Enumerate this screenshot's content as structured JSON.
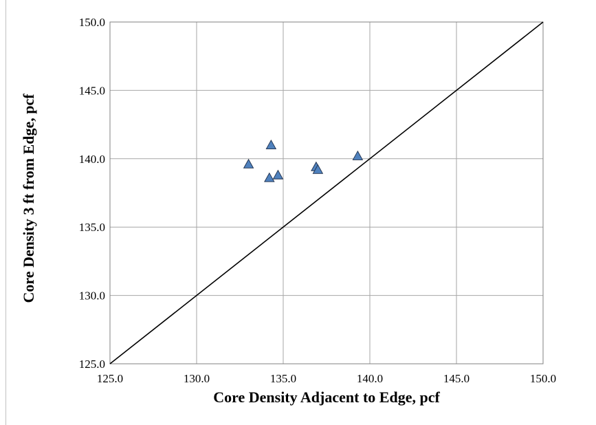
{
  "header_fragment": "",
  "chart_data": {
    "type": "scatter",
    "xlabel": "Core Density Adjacent to Edge, pcf",
    "ylabel": "Core Density 3 ft from Edge, pcf",
    "xlim": [
      125.0,
      150.0
    ],
    "ylim": [
      125.0,
      150.0
    ],
    "x_ticks": [
      "125.0",
      "130.0",
      "135.0",
      "140.0",
      "145.0",
      "150.0"
    ],
    "y_ticks": [
      "125.0",
      "130.0",
      "135.0",
      "140.0",
      "145.0",
      "150.0"
    ],
    "grid": true,
    "marker": "triangle",
    "marker_color": "#4f81bd",
    "line_of_equality": {
      "from": [
        125.0,
        125.0
      ],
      "to": [
        150.0,
        150.0
      ]
    },
    "points": [
      {
        "x": 133.0,
        "y": 139.6
      },
      {
        "x": 134.2,
        "y": 138.6
      },
      {
        "x": 134.3,
        "y": 141.0
      },
      {
        "x": 134.7,
        "y": 138.8
      },
      {
        "x": 136.9,
        "y": 139.4
      },
      {
        "x": 137.0,
        "y": 139.2
      },
      {
        "x": 139.3,
        "y": 140.2
      }
    ]
  }
}
